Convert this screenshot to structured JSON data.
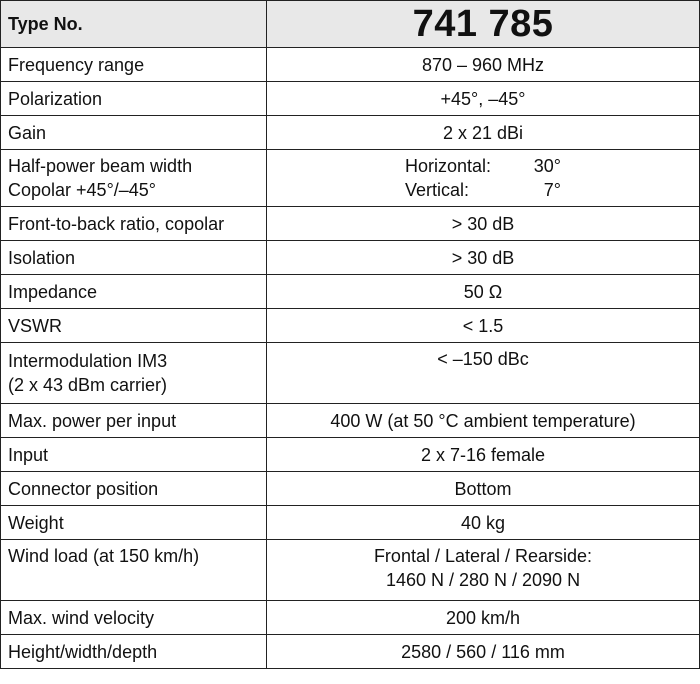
{
  "header": {
    "label": "Type No.",
    "value": "741 785"
  },
  "rows": [
    {
      "label": "Frequency range",
      "value": "870 – 960 MHz"
    },
    {
      "label": "Polarization",
      "value": "+45°, –45°"
    },
    {
      "label": "Gain",
      "value": "2 x 21 dBi"
    },
    {
      "label_line1": "Half-power beam width",
      "label_line2": "Copolar +45°/–45°",
      "horizontal_label": "Horizontal:",
      "horizontal_value": "30°",
      "vertical_label": "Vertical:",
      "vertical_value": "7°"
    },
    {
      "label": "Front-to-back ratio, copolar",
      "value": "> 30 dB"
    },
    {
      "label": "Isolation",
      "value": "> 30 dB"
    },
    {
      "label": "Impedance",
      "value": "50 Ω"
    },
    {
      "label": "VSWR",
      "value": "< 1.5"
    },
    {
      "label_line1": "Intermodulation IM3",
      "label_line2": "(2 x 43 dBm carrier)",
      "value": "< –150 dBc"
    },
    {
      "label": "Max. power per input",
      "value": "400 W (at 50 °C ambient temperature)"
    },
    {
      "label": "Input",
      "value": "2 x 7-16 female"
    },
    {
      "label": "Connector position",
      "value": "Bottom"
    },
    {
      "label": "Weight",
      "value": "40 kg"
    },
    {
      "label": "Wind load (at 150 km/h)",
      "value_line1": "Frontal / Lateral / Rearside:",
      "value_line2": "1460 N / 280 N / 2090 N"
    },
    {
      "label": "Max. wind velocity",
      "value": "200 km/h"
    },
    {
      "label": "Height/width/depth",
      "value": "2580 / 560 / 116 mm"
    }
  ]
}
